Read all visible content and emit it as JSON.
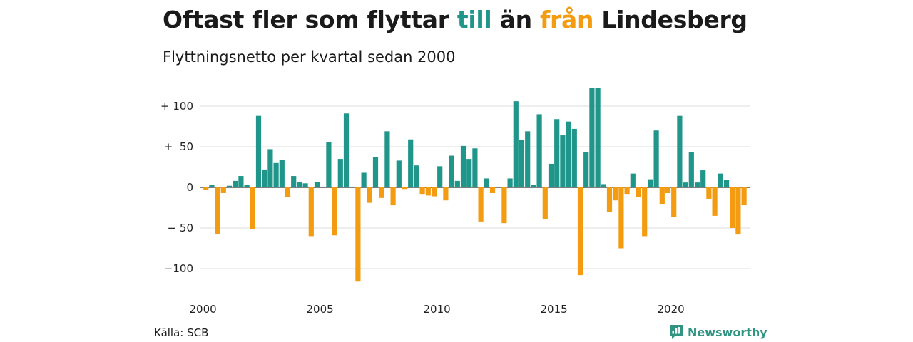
{
  "header": {
    "title_part1": "Oftast fler som flyttar ",
    "title_to": "till",
    "title_part2": " än ",
    "title_from": "från",
    "title_part3": " Lindesberg",
    "subtitle": "Flyttningsnetto per kvartal sedan 2000"
  },
  "footer": {
    "source": "Källa: SCB",
    "brand": "Newsworthy"
  },
  "colors": {
    "positive": "#20968a",
    "negative": "#f39c12",
    "grid": "#dcdcdc",
    "zero": "#333333"
  },
  "chart_data": {
    "type": "bar",
    "title": "Oftast fler som flyttar till än från Lindesberg",
    "subtitle": "Flyttningsnetto per kvartal sedan 2000",
    "x_start_year": 2000,
    "periods_per_year": 4,
    "x_ticks": [
      2000,
      2005,
      2010,
      2015,
      2020
    ],
    "y_ticks": [
      {
        "value": 100,
        "label": "+ 100"
      },
      {
        "value": 50,
        "label": "+  50"
      },
      {
        "value": 0,
        "label": "0"
      },
      {
        "value": -50,
        "label": "− 50"
      },
      {
        "value": -100,
        "label": "−100"
      }
    ],
    "ylim": [
      -115,
      122
    ],
    "grid": true,
    "values": [
      -3,
      3,
      -57,
      -7,
      2,
      8,
      14,
      3,
      -51,
      88,
      22,
      47,
      30,
      34,
      -12,
      14,
      7,
      5,
      -60,
      7,
      0,
      56,
      -59,
      35,
      91,
      0,
      -116,
      18,
      -19,
      37,
      -13,
      69,
      -22,
      33,
      -2,
      59,
      27,
      -8,
      -10,
      -11,
      26,
      -16,
      39,
      8,
      51,
      35,
      48,
      -42,
      11,
      -7,
      0,
      -44,
      11,
      106,
      58,
      69,
      3,
      90,
      -39,
      29,
      84,
      64,
      81,
      72,
      -108,
      43,
      122,
      122,
      4,
      -30,
      -16,
      -75,
      -8,
      17,
      -12,
      -60,
      10,
      70,
      -21,
      -7,
      -36,
      88,
      6,
      43,
      6,
      21,
      -14,
      -35,
      17,
      9,
      -50,
      -58,
      -22
    ]
  }
}
